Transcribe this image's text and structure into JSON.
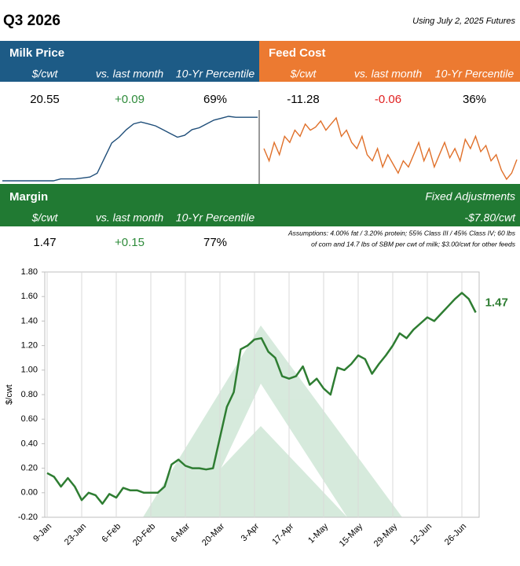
{
  "header": {
    "title": "Q3 2026",
    "note": "Using July 2, 2025 Futures"
  },
  "panels": [
    {
      "title": "Milk Price",
      "columns": [
        "$/cwt",
        "vs. last month",
        "10-Yr Percentile"
      ],
      "values": [
        "20.55",
        "+0.09",
        "69%"
      ],
      "sparkline": [
        17.2,
        17.2,
        17.2,
        17.2,
        17.2,
        17.2,
        17.2,
        17.2,
        17.3,
        17.3,
        17.3,
        17.35,
        17.4,
        17.6,
        18.4,
        19.2,
        19.5,
        19.9,
        20.2,
        20.3,
        20.2,
        20.1,
        19.9,
        19.7,
        19.5,
        19.6,
        19.9,
        20.0,
        20.2,
        20.4,
        20.5,
        20.6,
        20.55,
        20.55,
        20.55,
        20.55
      ]
    },
    {
      "title": "Feed Cost",
      "columns": [
        "$/cwt",
        "vs. last month",
        "10-Yr Percentile"
      ],
      "values": [
        "-11.28",
        "-0.06",
        "36%"
      ],
      "sparkline": [
        -11.1,
        -11.3,
        -11.0,
        -11.2,
        -10.9,
        -11.0,
        -10.8,
        -10.9,
        -10.7,
        -10.8,
        -10.75,
        -10.65,
        -10.8,
        -10.7,
        -10.6,
        -10.9,
        -10.8,
        -11.0,
        -11.1,
        -10.9,
        -11.2,
        -11.3,
        -11.1,
        -11.4,
        -11.2,
        -11.35,
        -11.5,
        -11.3,
        -11.4,
        -11.2,
        -11.0,
        -11.3,
        -11.1,
        -11.4,
        -11.2,
        -11.0,
        -11.25,
        -11.1,
        -11.3,
        -10.95,
        -11.1,
        -10.9,
        -11.15,
        -11.05,
        -11.3,
        -11.2,
        -11.45,
        -11.6,
        -11.5,
        -11.28
      ]
    }
  ],
  "margin": {
    "title": "Margin",
    "columns": [
      "$/cwt",
      "vs. last month",
      "10-Yr Percentile"
    ],
    "values": [
      "1.47",
      "+0.15",
      "77%"
    ],
    "adjustments_title": "Fixed Adjustments",
    "adjustments_value": "-$7.80/cwt",
    "assumptions": [
      "Assumptions: 4.00% fat / 3.20% protein; 55% Class III / 45% Class IV; 60 lbs",
      "of corn and 14.7 lbs of SBM per cwt of milk; $3.00/cwt for other feeds"
    ]
  },
  "chart_data": {
    "type": "line",
    "y_label": "$/cwt",
    "color": "#2e7d32",
    "xgrid": true,
    "categories": [
      "9-Jan",
      null,
      null,
      null,
      null,
      "23-Jan",
      null,
      null,
      null,
      null,
      "6-Feb",
      null,
      null,
      null,
      null,
      "20-Feb",
      null,
      null,
      null,
      null,
      "6-Mar",
      null,
      null,
      null,
      null,
      "20-Mar",
      null,
      null,
      null,
      null,
      "3-Apr",
      null,
      null,
      null,
      null,
      "17-Apr",
      null,
      null,
      null,
      null,
      "1-May",
      null,
      null,
      null,
      null,
      "15-May",
      null,
      null,
      null,
      null,
      "29-May",
      null,
      null,
      null,
      null,
      "12-Jun",
      null,
      null,
      null,
      null,
      "26-Jun",
      null,
      null
    ],
    "values": [
      0.16,
      0.13,
      0.05,
      0.12,
      0.05,
      -0.06,
      0.0,
      -0.02,
      -0.09,
      -0.01,
      -0.04,
      0.04,
      0.02,
      0.02,
      0.0,
      0.0,
      0.0,
      0.05,
      0.23,
      0.27,
      0.22,
      0.2,
      0.2,
      0.19,
      0.2,
      0.45,
      0.7,
      0.82,
      1.17,
      1.2,
      1.25,
      1.26,
      1.15,
      1.1,
      0.95,
      0.93,
      0.95,
      1.03,
      0.88,
      0.93,
      0.85,
      0.8,
      1.02,
      1.0,
      1.05,
      1.12,
      1.09,
      0.97,
      1.05,
      1.12,
      1.2,
      1.3,
      1.26,
      1.33,
      1.38,
      1.43,
      1.4,
      1.46,
      1.52,
      1.58,
      1.63,
      1.58,
      1.47
    ],
    "ylim": [
      -0.2,
      1.8
    ],
    "yticks": [
      {
        "value": -0.2,
        "label": "-0.20"
      },
      {
        "value": 0,
        "label": "0.00"
      },
      {
        "value": 0.2,
        "label": "0.20"
      },
      {
        "value": 0.4,
        "label": "0.40"
      },
      {
        "value": 0.6,
        "label": "0.60"
      },
      {
        "value": 0.8,
        "label": "0.80"
      },
      {
        "value": 1,
        "label": "1.00"
      },
      {
        "value": 1.2,
        "label": "1.20"
      },
      {
        "value": 1.4,
        "label": "1.40"
      },
      {
        "value": 1.6,
        "label": "1.60"
      },
      {
        "value": 1.8,
        "label": "1.80"
      }
    ]
  }
}
